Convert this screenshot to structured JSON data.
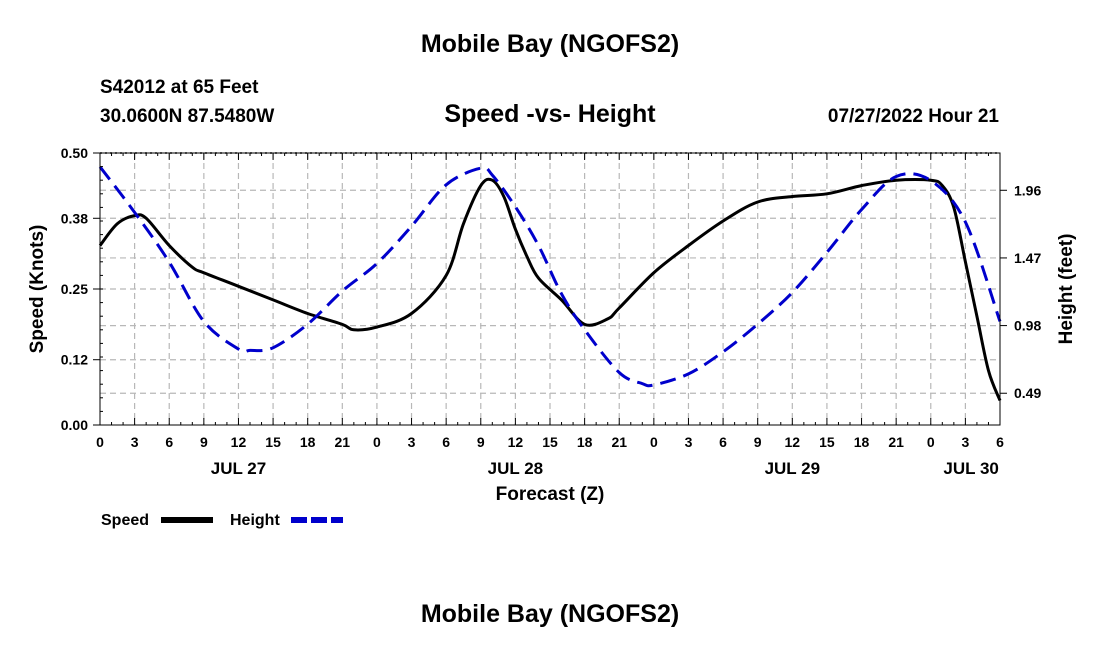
{
  "page": {
    "title": "Mobile Bay (NGOFS2)",
    "bottom_title": "Mobile Bay (NGOFS2)",
    "station": "S42012 at 65 Feet",
    "coords": "30.0600N  87.5480W",
    "subtitle": "Speed -vs- Height",
    "datetime": "07/27/2022 Hour 21"
  },
  "chart_data": {
    "type": "line",
    "title": "Speed -vs- Height",
    "xlabel": "Forecast (Z)",
    "ylabel": "Speed (Knots)",
    "y2label": "Height (feet)",
    "xlim": [
      0,
      78
    ],
    "ylim": [
      0,
      0.5
    ],
    "y2lim": [
      0.26,
      2.23
    ],
    "grid": true,
    "x_tick_values": [
      0,
      3,
      6,
      9,
      12,
      15,
      18,
      21,
      24,
      27,
      30,
      33,
      36,
      39,
      42,
      45,
      48,
      51,
      54,
      57,
      60,
      63,
      66,
      69,
      72,
      75,
      78
    ],
    "x_tick_labels": [
      "0",
      "3",
      "6",
      "9",
      "12",
      "15",
      "18",
      "21",
      "0",
      "3",
      "6",
      "9",
      "12",
      "15",
      "18",
      "21",
      "0",
      "3",
      "6",
      "9",
      "12",
      "15",
      "18",
      "21",
      "0",
      "3",
      "6"
    ],
    "date_labels": [
      {
        "label": "JUL 27",
        "x": 12
      },
      {
        "label": "JUL 28",
        "x": 36
      },
      {
        "label": "JUL 29",
        "x": 60
      },
      {
        "label": "JUL 30",
        "x": 75.5
      }
    ],
    "y_ticks": [
      0.0,
      0.12,
      0.25,
      0.38,
      0.5
    ],
    "y_tick_labels": [
      "0.00",
      "0.12",
      "0.25",
      "0.38",
      "0.50"
    ],
    "y2_ticks": [
      0.49,
      0.98,
      1.47,
      1.96
    ],
    "y2_tick_labels": [
      "0.49",
      "0.98",
      "1.47",
      "1.96"
    ],
    "legend": [
      {
        "label": "Speed",
        "color": "#000000",
        "style": "solid"
      },
      {
        "label": "Height",
        "color": "#0000cc",
        "style": "dashed"
      }
    ],
    "series": [
      {
        "name": "Speed",
        "axis": "left",
        "color": "#000000",
        "x": [
          0,
          1.5,
          3,
          4,
          6,
          8,
          9,
          12,
          15,
          18,
          21,
          22,
          24,
          27,
          30,
          31.5,
          33,
          34,
          35,
          36,
          37,
          38,
          40,
          42,
          44,
          45,
          48,
          51,
          54,
          57,
          60,
          63,
          66,
          69,
          72,
          73,
          74,
          75,
          76,
          77,
          78
        ],
        "values": [
          0.33,
          0.37,
          0.385,
          0.38,
          0.33,
          0.29,
          0.28,
          0.255,
          0.23,
          0.205,
          0.185,
          0.175,
          0.18,
          0.205,
          0.275,
          0.37,
          0.44,
          0.45,
          0.42,
          0.36,
          0.31,
          0.27,
          0.23,
          0.185,
          0.195,
          0.215,
          0.28,
          0.33,
          0.375,
          0.41,
          0.42,
          0.425,
          0.44,
          0.45,
          0.45,
          0.44,
          0.4,
          0.3,
          0.2,
          0.1,
          0.045
        ]
      },
      {
        "name": "Height",
        "axis": "right",
        "color": "#0000cc",
        "x": [
          0,
          3,
          6,
          9,
          12,
          13,
          15,
          18,
          21,
          24,
          27,
          30,
          33,
          34,
          36,
          38,
          40,
          42,
          45,
          47,
          48,
          51,
          54,
          57,
          60,
          63,
          66,
          69,
          72,
          75,
          78
        ],
        "values": [
          2.13,
          1.8,
          1.44,
          1.01,
          0.81,
          0.8,
          0.82,
          0.99,
          1.23,
          1.43,
          1.7,
          2.0,
          2.12,
          2.07,
          1.84,
          1.56,
          1.21,
          0.95,
          0.64,
          0.56,
          0.55,
          0.63,
          0.79,
          0.99,
          1.22,
          1.51,
          1.82,
          2.06,
          2.03,
          1.73,
          1.01
        ]
      }
    ]
  }
}
